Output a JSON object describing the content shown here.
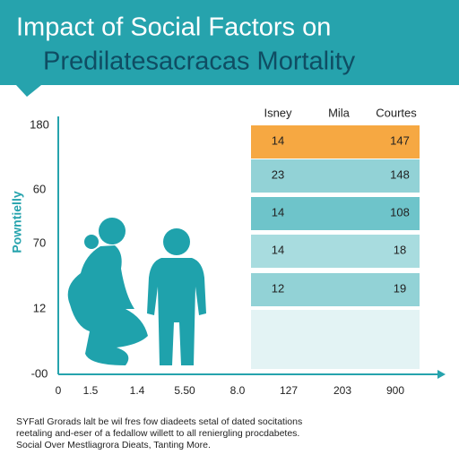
{
  "header": {
    "title_lines": [
      "Impact of Social Factors on",
      "Predilatesacracas Mortality"
    ]
  },
  "axis": {
    "label": "Powntielly",
    "y_labels": [
      "180",
      "60",
      "70",
      "12",
      "-00"
    ],
    "x_labels": [
      "0",
      "1.5",
      "1.4",
      "5.50",
      "8.0",
      "127",
      "203",
      "900"
    ]
  },
  "table": {
    "headers": [
      "Isney",
      "Mila",
      "Courtes"
    ],
    "rows": [
      [
        "14",
        "147"
      ],
      [
        "23",
        "148"
      ],
      [
        "14",
        "108"
      ],
      [
        "14",
        "18"
      ],
      [
        "12",
        "19"
      ]
    ]
  },
  "footer": {
    "lines": [
      "SYFatl Grorads lalt be wil fres fow diadeets setal of dated socitations",
      "reetaling and-eser of a fedallow willett to all reniergling procdabetes.",
      "Social Over Mestliagrora Dieats, Tanting More."
    ]
  }
}
